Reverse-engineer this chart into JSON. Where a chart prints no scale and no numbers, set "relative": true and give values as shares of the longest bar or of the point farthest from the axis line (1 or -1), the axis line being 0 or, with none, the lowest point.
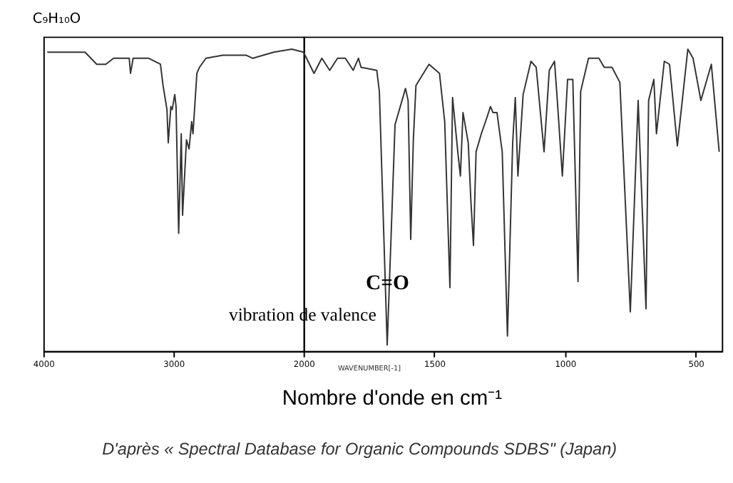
{
  "chart_data": [
    {
      "type": "line",
      "title": "C₉H₁₀O",
      "relative": true,
      "x": [
        3970,
        3770,
        3680,
        3590,
        3520,
        3460,
        3380,
        3340,
        3330,
        3310,
        3190,
        3100,
        3080,
        3050,
        3040,
        3020,
        3010,
        2990,
        2980,
        2960,
        2940,
        2930,
        2900,
        2880,
        2860,
        2850,
        2820,
        2800,
        2750,
        2620,
        2440,
        2390,
        2230,
        2090,
        2000
      ],
      "values": [
        0.99,
        0.99,
        0.99,
        0.95,
        0.95,
        0.97,
        0.97,
        0.97,
        0.92,
        0.97,
        0.97,
        0.95,
        0.88,
        0.8,
        0.69,
        0.81,
        0.8,
        0.85,
        0.81,
        0.39,
        0.72,
        0.45,
        0.7,
        0.67,
        0.76,
        0.72,
        0.92,
        0.94,
        0.97,
        0.98,
        0.98,
        0.97,
        0.99,
        1.0,
        0.99
      ],
      "color": "#333333",
      "xlim": [
        4000,
        2000
      ],
      "xticks": [
        4000,
        3000,
        2000
      ],
      "grid": false,
      "marker": "none",
      "line_style": "solid"
    },
    {
      "type": "line",
      "xlabel": "Nombre d'onde en cm⁻¹",
      "relative": true,
      "x": [
        2000,
        1960,
        1930,
        1900,
        1870,
        1840,
        1810,
        1790,
        1780,
        1720,
        1710,
        1680,
        1650,
        1610,
        1600,
        1590,
        1580,
        1570,
        1520,
        1480,
        1460,
        1440,
        1430,
        1410,
        1400,
        1390,
        1370,
        1360,
        1350,
        1340,
        1320,
        1300,
        1285,
        1275,
        1260,
        1240,
        1220,
        1200,
        1190,
        1180,
        1160,
        1130,
        1110,
        1080,
        1060,
        1040,
        1030,
        1010,
        990,
        970,
        950,
        940,
        910,
        870,
        850,
        820,
        790,
        750,
        720,
        690,
        680,
        660,
        650,
        620,
        600,
        570,
        530,
        510,
        480,
        440,
        410
      ],
      "values": [
        0.99,
        0.92,
        0.97,
        0.93,
        0.97,
        0.97,
        0.93,
        0.97,
        0.94,
        0.93,
        0.86,
        0.02,
        0.75,
        0.87,
        0.83,
        0.37,
        0.7,
        0.88,
        0.95,
        0.92,
        0.76,
        0.21,
        0.84,
        0.66,
        0.58,
        0.79,
        0.69,
        0.5,
        0.35,
        0.66,
        0.72,
        0.77,
        0.81,
        0.79,
        0.79,
        0.66,
        0.05,
        0.69,
        0.84,
        0.58,
        0.85,
        0.96,
        0.94,
        0.66,
        0.93,
        0.96,
        0.84,
        0.58,
        0.9,
        0.9,
        0.23,
        0.86,
        0.97,
        0.97,
        0.94,
        0.94,
        0.89,
        0.13,
        0.83,
        0.14,
        0.83,
        0.9,
        0.72,
        0.96,
        0.95,
        0.68,
        1.0,
        0.97,
        0.83,
        0.95,
        0.66
      ],
      "color": "#333333",
      "xlim": [
        2000,
        400
      ],
      "xticks": [
        1500,
        1000,
        500
      ],
      "grid": false,
      "marker": "none",
      "line_style": "solid",
      "annotations": [
        "C=O",
        "vibration de valence",
        "WAVENUMBER[-1]",
        "D'après « Spectral Database for Organic Compounds SDBS\" (Japan)"
      ]
    }
  ]
}
